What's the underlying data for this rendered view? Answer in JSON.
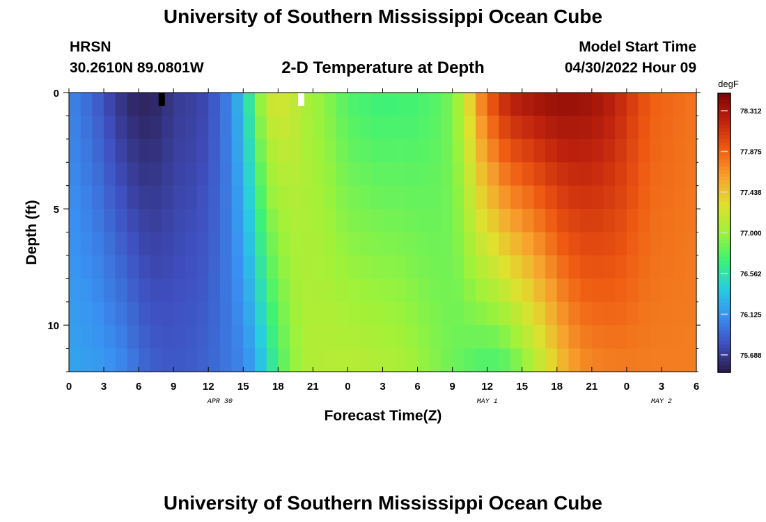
{
  "header": {
    "title": "University of Southern Mississippi Ocean Cube",
    "station": "HRSN",
    "coordinates": "30.2610N  89.0801W",
    "subtitle": "2-D Temperature at Depth",
    "model_start_label": "Model Start Time",
    "model_start_value": "04/30/2022 Hour 09"
  },
  "footer": {
    "title": "University of Southern Mississippi Ocean Cube"
  },
  "chart_data": {
    "type": "heatmap",
    "title": "2-D Temperature at Depth",
    "xlabel": "Forecast Time(Z)",
    "ylabel": "Depth (ft)",
    "x_hours_from_start": [
      0,
      3,
      6,
      9,
      12,
      15,
      18,
      21,
      24,
      27,
      30,
      33,
      36,
      39,
      42,
      45,
      48,
      51,
      54
    ],
    "x_tick_labels": [
      "0",
      "3",
      "6",
      "9",
      "12",
      "15",
      "18",
      "21",
      "0",
      "3",
      "6",
      "9",
      "12",
      "15",
      "18",
      "21",
      "0",
      "3",
      "6"
    ],
    "x_date_labels": [
      {
        "hour": 13,
        "label": "APR 30"
      },
      {
        "hour": 36,
        "label": "MAY 1"
      },
      {
        "hour": 51,
        "label": "MAY 2"
      }
    ],
    "y_tick_labels": [
      "0",
      "5",
      "10"
    ],
    "y_major_ticks_ft": [
      0,
      5,
      10
    ],
    "y_range_ft": [
      0,
      12
    ],
    "colorbar": {
      "unit": "degF",
      "tick_labels": [
        "78.312",
        "77.875",
        "77.438",
        "77.000",
        "76.562",
        "76.125",
        "75.688"
      ],
      "tick_values": [
        78.312,
        77.875,
        77.438,
        77.0,
        76.562,
        76.125,
        75.688
      ],
      "range": [
        75.5,
        78.5
      ],
      "colors": [
        "#2a1a48",
        "#3f4fbf",
        "#3a8ff2",
        "#27cde0",
        "#3df276",
        "#9ef23a",
        "#e0e02e",
        "#f7a22e",
        "#ef5a12",
        "#c0230e",
        "#7a0403"
      ]
    },
    "time_profile_hours": [
      0,
      1,
      2,
      3,
      4,
      5,
      6,
      7,
      8,
      9,
      10,
      11,
      12,
      13,
      14,
      15,
      16,
      17,
      18,
      19,
      20,
      21,
      22,
      23,
      24,
      25,
      26,
      27,
      28,
      29,
      30,
      31,
      32,
      33,
      34,
      35,
      36,
      37,
      38,
      39,
      40,
      41,
      42,
      43,
      44,
      45,
      46,
      47,
      48,
      49,
      50,
      51,
      52,
      53,
      54
    ],
    "surface_temperature_degF": [
      76.05,
      75.98,
      75.9,
      75.8,
      75.68,
      75.6,
      75.55,
      75.55,
      75.6,
      75.68,
      75.7,
      75.72,
      75.78,
      75.92,
      76.08,
      76.4,
      76.8,
      77.2,
      77.25,
      77.2,
      77.1,
      77.0,
      76.95,
      76.85,
      76.75,
      76.72,
      76.7,
      76.68,
      76.7,
      76.7,
      76.72,
      76.75,
      76.8,
      76.9,
      77.15,
      77.6,
      77.9,
      78.1,
      78.28,
      78.3,
      78.35,
      78.38,
      78.4,
      78.4,
      78.38,
      78.35,
      78.3,
      78.22,
      78.12,
      78.0,
      77.9,
      77.85,
      77.85,
      77.8,
      77.8
    ],
    "bottom_temperature_degF": [
      76.2,
      76.2,
      76.18,
      76.15,
      76.1,
      76.05,
      75.95,
      75.9,
      75.85,
      75.85,
      75.85,
      75.88,
      75.9,
      75.95,
      76.0,
      76.05,
      76.2,
      76.45,
      76.7,
      76.9,
      77.05,
      77.1,
      77.1,
      77.12,
      77.12,
      77.12,
      77.1,
      77.1,
      77.08,
      77.05,
      77.0,
      76.95,
      76.9,
      76.85,
      76.8,
      76.75,
      76.7,
      76.72,
      76.78,
      76.9,
      77.05,
      77.2,
      77.4,
      77.55,
      77.65,
      77.7,
      77.72,
      77.75,
      77.75,
      77.75,
      77.75,
      77.75,
      77.75,
      77.75,
      77.75
    ],
    "markers": [
      {
        "hour": 7,
        "color": "#000000"
      },
      {
        "hour": 19,
        "color": "#ffffff"
      }
    ]
  }
}
